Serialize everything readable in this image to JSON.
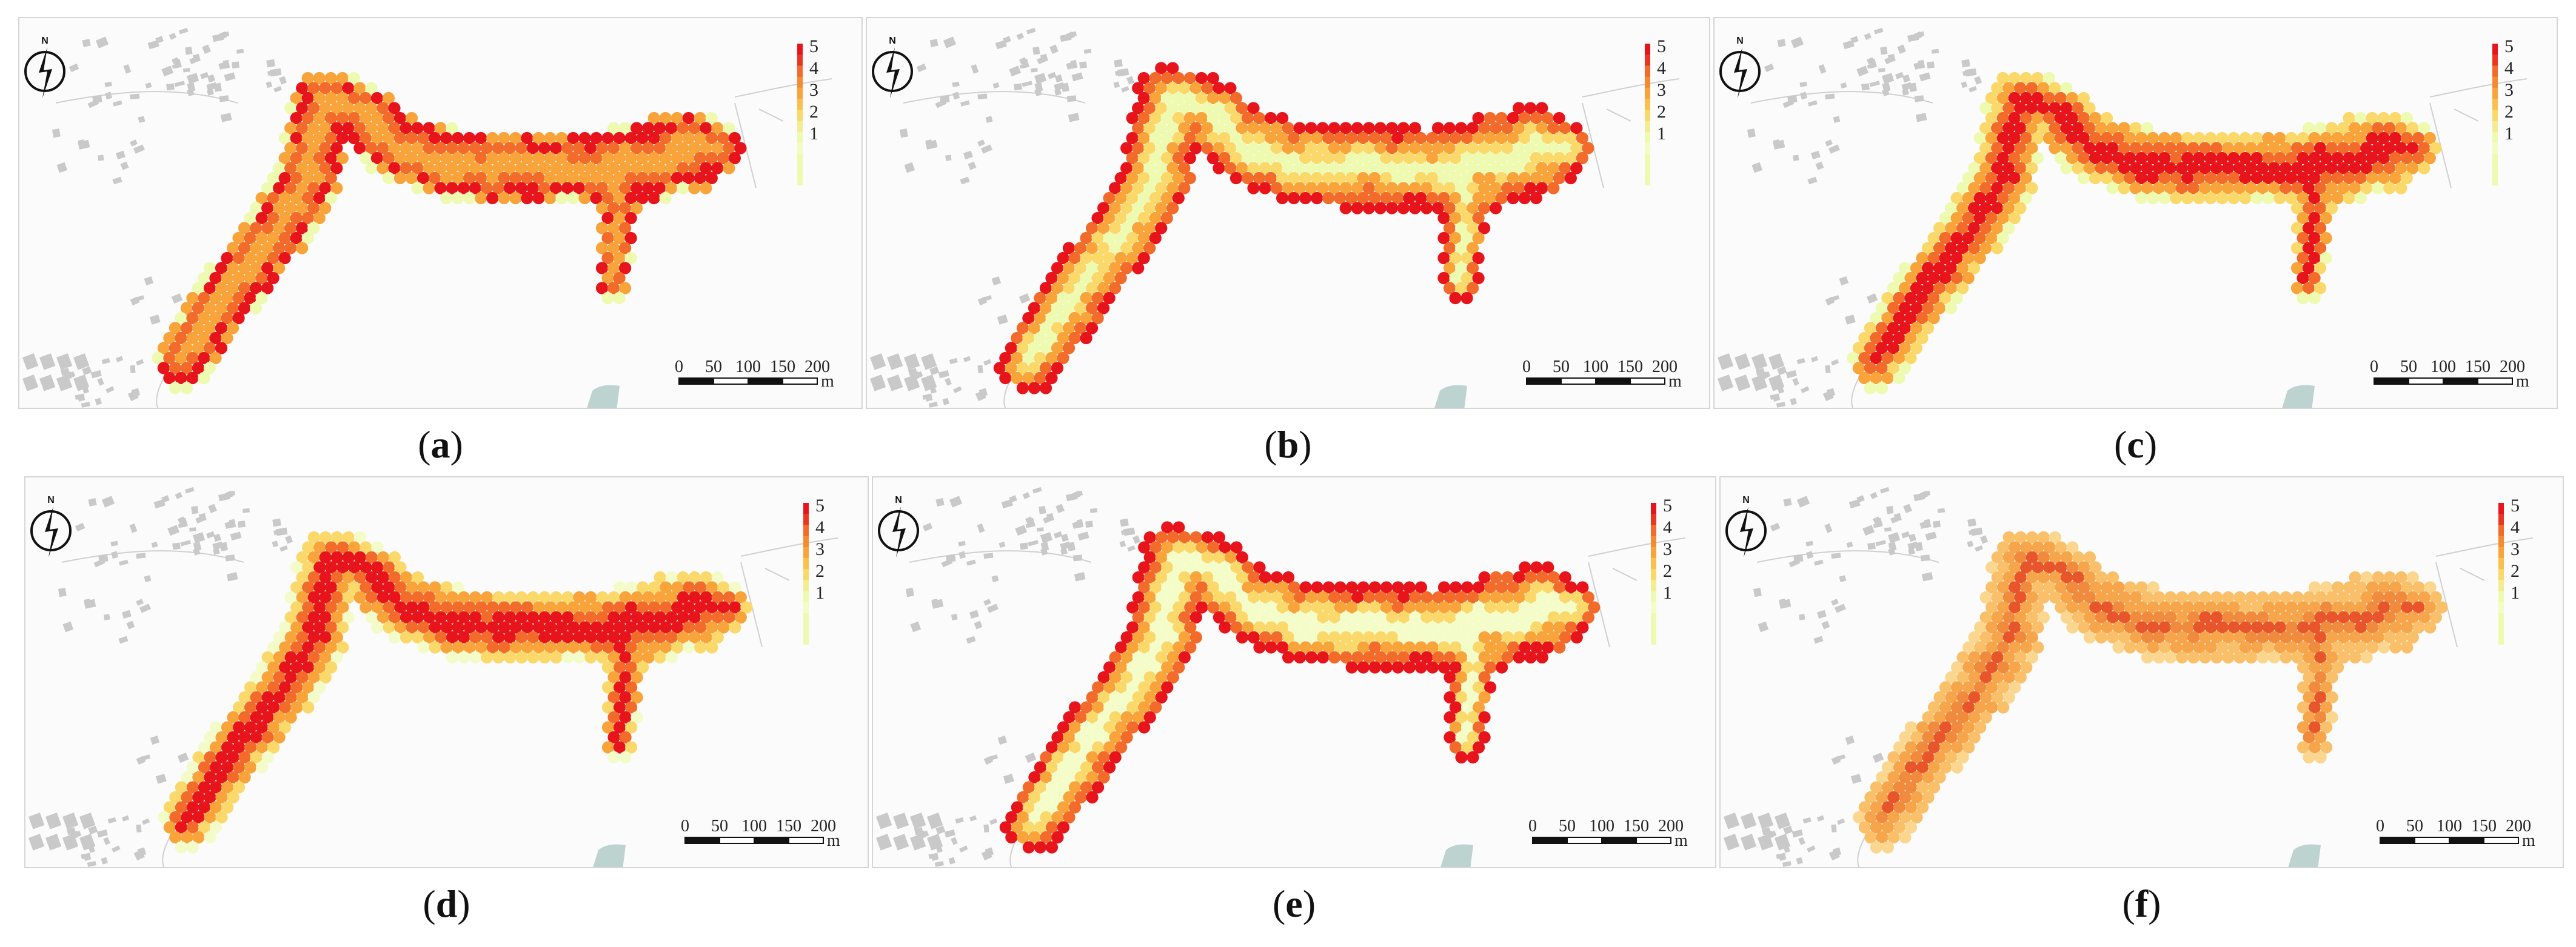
{
  "panels": [
    {
      "id": "a",
      "caption": "a",
      "style": "edge-red-core"
    },
    {
      "id": "b",
      "caption": "b",
      "style": "outline-red"
    },
    {
      "id": "c",
      "caption": "c",
      "style": "core-red"
    },
    {
      "id": "d",
      "caption": "d",
      "style": "core-red-soft"
    },
    {
      "id": "e",
      "caption": "e",
      "style": "outline-red-light-core"
    },
    {
      "id": "f",
      "caption": "f",
      "style": "orange-uniform"
    }
  ],
  "legend": {
    "levels": [
      "1",
      "2",
      "3",
      "4",
      "5"
    ],
    "colors": [
      "#eefab0",
      "#fbd86a",
      "#f8a43a",
      "#f26b2a",
      "#e8141c"
    ]
  },
  "scale_bar": {
    "ticks": [
      "0",
      "50",
      "100",
      "150",
      "200"
    ],
    "unit": "m"
  },
  "north_arrow": {
    "label": "N"
  },
  "colors": {
    "background": "#fbfbfb",
    "buildings": "#c9c9c9",
    "water": "#bcd3cf",
    "roads": "#d0d0d0"
  }
}
